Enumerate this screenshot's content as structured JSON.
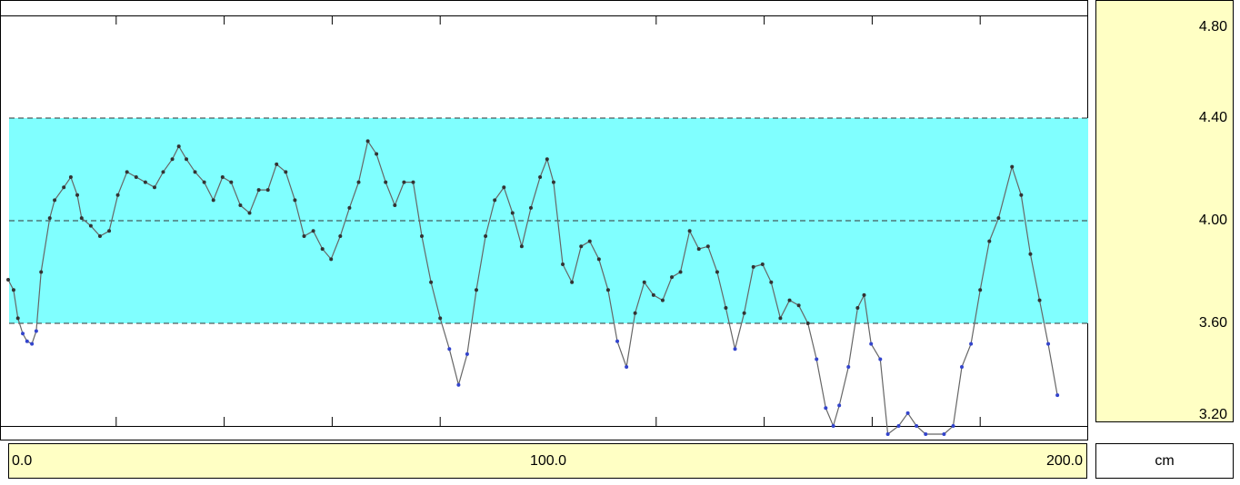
{
  "chart_data": {
    "type": "line",
    "x": [
      0.0,
      1.0,
      1.8,
      2.7,
      3.5,
      4.4,
      5.2,
      6.1,
      7.7,
      8.6,
      10.3,
      11.6,
      12.8,
      13.6,
      15.3,
      17.0,
      18.7,
      20.3,
      22.0,
      23.7,
      25.4,
      27.1,
      28.7,
      30.4,
      31.6,
      33.0,
      34.6,
      36.3,
      38.0,
      39.7,
      41.3,
      43.0,
      44.7,
      46.4,
      48.1,
      49.7,
      51.4,
      53.1,
      54.8,
      56.5,
      58.2,
      59.8,
      61.5,
      63.2,
      64.9,
      66.6,
      68.2,
      69.9,
      71.6,
      73.3,
      75.0,
      76.6,
      78.3,
      80.0,
      81.7,
      83.4,
      85.0,
      86.7,
      88.4,
      90.1,
      91.8,
      93.4,
      95.1,
      96.8,
      98.5,
      99.8,
      101.0,
      102.7,
      104.4,
      106.1,
      107.7,
      109.4,
      111.1,
      112.8,
      114.5,
      116.1,
      117.8,
      119.5,
      121.2,
      122.9,
      124.5,
      126.2,
      127.9,
      129.6,
      131.3,
      132.9,
      134.6,
      136.3,
      138.0,
      139.7,
      141.3,
      143.0,
      144.7,
      146.4,
      148.1,
      149.7,
      151.4,
      152.8,
      153.9,
      155.6,
      157.3,
      158.5,
      159.8,
      161.5,
      162.9,
      164.9,
      166.6,
      168.2,
      169.9,
      173.3,
      175.0,
      176.6,
      178.3,
      180.0,
      181.7,
      183.4,
      185.9,
      187.6,
      189.3,
      191.0,
      192.6,
      194.3
    ],
    "values": [
      3.77,
      3.73,
      3.62,
      3.56,
      3.53,
      3.52,
      3.57,
      3.8,
      4.01,
      4.08,
      4.13,
      4.17,
      4.1,
      4.01,
      3.98,
      3.94,
      3.96,
      4.1,
      4.19,
      4.17,
      4.15,
      4.13,
      4.19,
      4.24,
      4.29,
      4.24,
      4.19,
      4.15,
      4.08,
      4.17,
      4.15,
      4.06,
      4.03,
      4.12,
      4.12,
      4.22,
      4.19,
      4.08,
      3.94,
      3.96,
      3.89,
      3.85,
      3.94,
      4.05,
      4.15,
      4.31,
      4.26,
      4.15,
      4.06,
      4.15,
      4.15,
      3.94,
      3.76,
      3.62,
      3.5,
      3.36,
      3.48,
      3.73,
      3.94,
      4.08,
      4.13,
      4.03,
      3.9,
      4.05,
      4.17,
      4.24,
      4.15,
      3.83,
      3.76,
      3.9,
      3.92,
      3.85,
      3.73,
      3.53,
      3.43,
      3.64,
      3.76,
      3.71,
      3.69,
      3.78,
      3.8,
      3.96,
      3.89,
      3.9,
      3.8,
      3.66,
      3.5,
      3.64,
      3.82,
      3.83,
      3.76,
      3.62,
      3.69,
      3.67,
      3.6,
      3.46,
      3.27,
      3.2,
      3.28,
      3.43,
      3.66,
      3.71,
      3.52,
      3.46,
      3.15,
      3.2,
      3.25,
      3.2,
      3.15,
      3.15,
      3.2,
      3.43,
      3.52,
      3.73,
      3.92,
      4.01,
      4.21,
      4.1,
      3.87,
      3.69,
      3.52,
      3.32
    ],
    "xlim": [
      0,
      200
    ],
    "xticks": [
      {
        "value": 0,
        "label": "0.0"
      },
      {
        "value": 100,
        "label": "100.0"
      },
      {
        "value": 200,
        "label": "200.0"
      }
    ],
    "xminor_ticks": [
      20,
      40,
      60,
      80,
      120,
      140,
      160,
      180
    ],
    "xlabel": "cm",
    "ylim": [
      3.2,
      4.8
    ],
    "yticks": [
      {
        "value": 3.2,
        "label": "3.20"
      },
      {
        "value": 3.6,
        "label": "3.60"
      },
      {
        "value": 4.0,
        "label": "4.00"
      },
      {
        "value": 4.4,
        "label": "4.40"
      },
      {
        "value": 4.8,
        "label": "4.80"
      }
    ],
    "grid_ticks": [
      3.6,
      4.0,
      4.4
    ],
    "band": {
      "range": [
        3.6,
        4.4
      ],
      "color": "#80ffff"
    },
    "line_color": "#666666",
    "point_color": "#333333",
    "out_color": "#3344cc"
  }
}
